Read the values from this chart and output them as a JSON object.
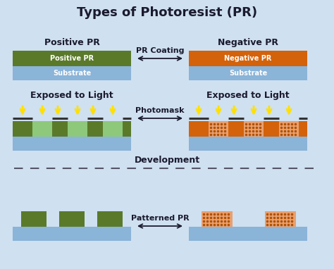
{
  "title": "Types of Photoresist (PR)",
  "bg_color": "#cfe0f0",
  "green_dark": "#5a7a2a",
  "green_light": "#8ec87a",
  "blue_color": "#8ab4d8",
  "orange_dark": "#d4620a",
  "orange_light": "#e8a070",
  "dark_color": "#1a1a2e",
  "yellow_color": "#ffe000",
  "label_pos_pr": "Positive PR",
  "label_neg_pr": "Negative PR",
  "label_coating": "PR Coating",
  "label_photomask": "Photomask",
  "label_development": "Development",
  "label_patterned": "Patterned PR",
  "label_exposed": "Exposed to Light",
  "label_substrate": "Substrate",
  "label_pos_layer": "Positive PR",
  "label_neg_layer": "Negative PR",
  "figw": 4.74,
  "figh": 3.82,
  "dpi": 100
}
